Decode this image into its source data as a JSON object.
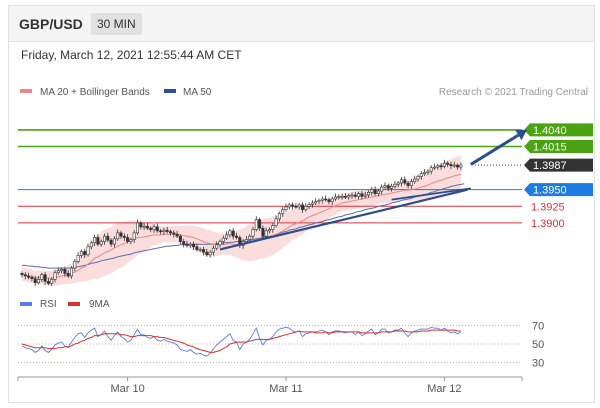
{
  "header": {
    "symbol": "GBP/USD",
    "timeframe": "30 MIN",
    "datetime": "Friday, March 12, 2021 12:55:44 AM CET"
  },
  "legend": {
    "bollinger_label": "MA 20 + Bollinger Bands",
    "ma50_label": "MA 50",
    "copyright": "Research © 2021 Trading Central",
    "rsi_label": "RSI",
    "rsi_ma_label": "9MA"
  },
  "colors": {
    "resistance": "#4aa312",
    "current": "#333333",
    "pivot": "#1e7be0",
    "support": "#e0303a",
    "trend": "#2b4e8c",
    "ma20": "#e88888",
    "ma50": "#5a6eaa",
    "band_fill": "#fbd7d7",
    "candle_up": "#ffffff",
    "candle_down": "#333333",
    "rsi": "#5b7be6",
    "rsi_ma": "#d83030"
  },
  "chart_data": [
    {
      "type": "candlestick",
      "levels": [
        {
          "value": 1.404,
          "label": "1.4040",
          "kind": "resistance"
        },
        {
          "value": 1.4015,
          "label": "1.4015",
          "kind": "resistance"
        },
        {
          "value": 1.3987,
          "label": "1.3987",
          "kind": "current"
        },
        {
          "value": 1.395,
          "label": "1.3950",
          "kind": "pivot"
        },
        {
          "value": 1.3925,
          "label": "1.3925",
          "kind": "support"
        },
        {
          "value": 1.39,
          "label": "1.3900",
          "kind": "support"
        }
      ],
      "x_ticks": [
        {
          "label": "Mar 10",
          "index": 32
        },
        {
          "label": "Mar 11",
          "index": 80
        },
        {
          "label": "Mar 12",
          "index": 128
        }
      ],
      "ylim": [
        1.3802,
        1.4085
      ],
      "close": [
        1.3822,
        1.382,
        1.3818,
        1.3816,
        1.381,
        1.3815,
        1.3822,
        1.3812,
        1.3809,
        1.3815,
        1.3825,
        1.3828,
        1.383,
        1.3824,
        1.382,
        1.3832,
        1.3842,
        1.3851,
        1.3857,
        1.3852,
        1.3864,
        1.387,
        1.3878,
        1.3868,
        1.3872,
        1.388,
        1.3874,
        1.3868,
        1.3876,
        1.3885,
        1.388,
        1.3878,
        1.3872,
        1.3875,
        1.3885,
        1.39,
        1.3894,
        1.3895,
        1.3892,
        1.389,
        1.3894,
        1.3888,
        1.3887,
        1.3889,
        1.3887,
        1.3885,
        1.3883,
        1.388,
        1.3872,
        1.3868,
        1.3866,
        1.3868,
        1.3864,
        1.386,
        1.386,
        1.3856,
        1.3852,
        1.3856,
        1.3862,
        1.3867,
        1.3872,
        1.3877,
        1.3882,
        1.3888,
        1.388,
        1.3878,
        1.3866,
        1.3872,
        1.3875,
        1.388,
        1.389,
        1.3905,
        1.3892,
        1.388,
        1.3888,
        1.389,
        1.3896,
        1.3906,
        1.3914,
        1.392,
        1.3924,
        1.3927,
        1.3925,
        1.3924,
        1.3927,
        1.392,
        1.3925,
        1.3928,
        1.393,
        1.3932,
        1.3934,
        1.3936,
        1.3935,
        1.3932,
        1.3936,
        1.3939,
        1.394,
        1.394,
        1.3939,
        1.3941,
        1.3942,
        1.394,
        1.3944,
        1.394,
        1.3942,
        1.3946,
        1.395,
        1.3944,
        1.3948,
        1.3954,
        1.3956,
        1.3952,
        1.3955,
        1.3958,
        1.396,
        1.3965,
        1.396,
        1.3956,
        1.3962,
        1.3966,
        1.397,
        1.3974,
        1.3976,
        1.3978,
        1.3983,
        1.3984,
        1.3986,
        1.3985,
        1.399,
        1.3988,
        1.3986,
        1.3987,
        1.3984,
        1.3987
      ],
      "ma20": [
        1.3823,
        1.3822,
        1.382,
        1.382,
        1.3818,
        1.3818,
        1.3818,
        1.3817,
        1.3817,
        1.3817,
        1.3818,
        1.3819,
        1.382,
        1.3821,
        1.3822,
        1.3824,
        1.3826,
        1.3829,
        1.3832,
        1.3834,
        1.3838,
        1.3842,
        1.3847,
        1.3849,
        1.3852,
        1.3855,
        1.3857,
        1.3859,
        1.3862,
        1.3865,
        1.3867,
        1.3869,
        1.3871,
        1.3873,
        1.3875,
        1.3878,
        1.3878,
        1.3879,
        1.388,
        1.3881,
        1.3882,
        1.3882,
        1.3882,
        1.3883,
        1.3883,
        1.3883,
        1.3883,
        1.3883,
        1.3882,
        1.3881,
        1.388,
        1.3879,
        1.3878,
        1.3876,
        1.3874,
        1.3872,
        1.387,
        1.3869,
        1.3868,
        1.3868,
        1.3868,
        1.3868,
        1.3868,
        1.3869,
        1.3868,
        1.3868,
        1.3868,
        1.3868,
        1.3869,
        1.387,
        1.3872,
        1.3874,
        1.3876,
        1.3876,
        1.3877,
        1.3879,
        1.3881,
        1.3883,
        1.3885,
        1.3888,
        1.3891,
        1.3894,
        1.3897,
        1.3899,
        1.3901,
        1.3903,
        1.3906,
        1.3909,
        1.3911,
        1.3913,
        1.3915,
        1.3917,
        1.3919,
        1.3921,
        1.3924,
        1.3926,
        1.3928,
        1.393,
        1.3931,
        1.3932,
        1.3933,
        1.3934,
        1.3935,
        1.3936,
        1.3937,
        1.3938,
        1.3939,
        1.394,
        1.3941,
        1.3942,
        1.3943,
        1.3944,
        1.3945,
        1.3946,
        1.3947,
        1.3948,
        1.3949,
        1.3949,
        1.395,
        1.3951,
        1.3952,
        1.3954,
        1.3955,
        1.3957,
        1.3959,
        1.3961,
        1.3963,
        1.3964,
        1.3966,
        1.3968,
        1.3969,
        1.3971,
        1.3972,
        1.3973
      ],
      "ma50": [
        1.3836,
        1.3836,
        1.3835,
        1.3835,
        1.3834,
        1.3834,
        1.3833,
        1.3833,
        1.3832,
        1.3832,
        1.3832,
        1.3832,
        1.3832,
        1.3832,
        1.3832,
        1.3832,
        1.3833,
        1.3834,
        1.3835,
        1.3836,
        1.3837,
        1.3839,
        1.384,
        1.3841,
        1.3843,
        1.3844,
        1.3845,
        1.3846,
        1.3847,
        1.3849,
        1.385,
        1.3851,
        1.3852,
        1.3853,
        1.3855,
        1.3856,
        1.3857,
        1.3858,
        1.3859,
        1.386,
        1.3861,
        1.3862,
        1.3863,
        1.3864,
        1.3865,
        1.3865,
        1.3866,
        1.3866,
        1.3867,
        1.3867,
        1.3868,
        1.3868,
        1.3868,
        1.3868,
        1.3868,
        1.3868,
        1.3868,
        1.3868,
        1.3868,
        1.3869,
        1.3869,
        1.387,
        1.387,
        1.3871,
        1.3871,
        1.3872,
        1.3872,
        1.3873,
        1.3873,
        1.3874,
        1.3875,
        1.3876,
        1.3877,
        1.3878,
        1.3879,
        1.388,
        1.3881,
        1.3883,
        1.3884,
        1.3886,
        1.3887,
        1.3889,
        1.389,
        1.3891,
        1.3893,
        1.3894,
        1.3896,
        1.3897,
        1.3898,
        1.39,
        1.3901,
        1.3902,
        1.3904,
        1.3905,
        1.3906,
        1.3908,
        1.3909,
        1.391,
        1.3912,
        1.3913,
        1.3914,
        1.3916,
        1.3917,
        1.3918,
        1.392,
        1.3921,
        1.3922,
        1.3923,
        1.3925,
        1.3926,
        1.3927,
        1.3928,
        1.393,
        1.3931,
        1.3932,
        1.3934,
        1.3935,
        1.3936,
        1.3937,
        1.3939,
        1.394,
        1.3941,
        1.3943,
        1.3944,
        1.3946,
        1.3947,
        1.3949,
        1.395,
        1.3952,
        1.3953,
        1.3955,
        1.3956,
        1.3957,
        1.3958,
        1.3959
      ],
      "band_width": [
        0.001,
        0.001,
        0.001,
        0.001,
        0.001,
        0.001,
        0.001,
        0.0011,
        0.0011,
        0.0011,
        0.0012,
        0.0012,
        0.0013,
        0.0013,
        0.0014,
        0.0015,
        0.0016,
        0.0018,
        0.002,
        0.0022,
        0.0025,
        0.0028,
        0.0031,
        0.0033,
        0.0034,
        0.0035,
        0.0035,
        0.0035,
        0.0035,
        0.0035,
        0.0034,
        0.0033,
        0.0031,
        0.003,
        0.0028,
        0.0026,
        0.0024,
        0.0022,
        0.002,
        0.0018,
        0.0016,
        0.0014,
        0.0013,
        0.0012,
        0.0012,
        0.0012,
        0.0013,
        0.0013,
        0.0014,
        0.0015,
        0.0016,
        0.0017,
        0.0018,
        0.0019,
        0.0019,
        0.002,
        0.002,
        0.002,
        0.0019,
        0.0018,
        0.0017,
        0.0016,
        0.0016,
        0.0017,
        0.0018,
        0.002,
        0.0022,
        0.0024,
        0.0026,
        0.0028,
        0.0029,
        0.003,
        0.003,
        0.003,
        0.003,
        0.0029,
        0.0029,
        0.0028,
        0.0027,
        0.0026,
        0.0025,
        0.0024,
        0.0023,
        0.0022,
        0.0021,
        0.002,
        0.0019,
        0.0018,
        0.0017,
        0.0016,
        0.0015,
        0.0015,
        0.0014,
        0.0014,
        0.0014,
        0.0014,
        0.0013,
        0.0013,
        0.0013,
        0.0013,
        0.0013,
        0.0013,
        0.0013,
        0.0013,
        0.0013,
        0.0013,
        0.0013,
        0.0013,
        0.0013,
        0.0013,
        0.0013,
        0.0014,
        0.0014,
        0.0014,
        0.0015,
        0.0015,
        0.0016,
        0.0016,
        0.0017,
        0.0017,
        0.0018,
        0.0019,
        0.002,
        0.0021,
        0.0022,
        0.0023,
        0.0024,
        0.0025,
        0.0026,
        0.0026,
        0.0027,
        0.0027,
        0.0028,
        0.0028,
        0.0028
      ],
      "trendlines": [
        {
          "from": {
            "index": 60,
            "value": 1.386
          },
          "to": {
            "index": 135,
            "value": 1.395
          },
          "arrow": false
        },
        {
          "from": {
            "index": 112,
            "value": 1.3935
          },
          "to": {
            "index": 136,
            "value": 1.3952
          },
          "arrow": false
        },
        {
          "from": {
            "index": 136,
            "value": 1.3988
          },
          "to": {
            "index": 153,
            "value": 1.404
          },
          "arrow": true
        }
      ]
    },
    {
      "type": "line",
      "title": "RSI",
      "yticks": [
        70,
        50,
        30
      ],
      "ylim": [
        22,
        78
      ],
      "rsi": [
        48,
        46,
        45,
        44,
        41,
        43,
        48,
        43,
        41,
        44,
        49,
        51,
        52,
        48,
        46,
        52,
        57,
        61,
        62,
        57,
        62,
        65,
        67,
        58,
        60,
        64,
        58,
        54,
        59,
        63,
        58,
        56,
        52,
        54,
        60,
        66,
        60,
        60,
        57,
        56,
        58,
        54,
        53,
        55,
        53,
        52,
        51,
        49,
        44,
        43,
        42,
        44,
        41,
        39,
        40,
        38,
        37,
        40,
        45,
        49,
        52,
        55,
        58,
        61,
        54,
        52,
        44,
        50,
        52,
        55,
        61,
        67,
        56,
        49,
        54,
        55,
        58,
        63,
        66,
        67,
        68,
        67,
        64,
        63,
        64,
        58,
        61,
        62,
        63,
        63,
        64,
        65,
        63,
        60,
        63,
        64,
        64,
        63,
        62,
        63,
        63,
        60,
        63,
        59,
        61,
        64,
        66,
        60,
        62,
        66,
        66,
        62,
        63,
        65,
        65,
        67,
        62,
        58,
        62,
        64,
        65,
        66,
        66,
        66,
        68,
        67,
        67,
        65,
        67,
        64,
        62,
        63,
        61,
        63
      ],
      "rsi_ma": [
        50,
        49,
        48,
        47,
        46,
        46,
        46,
        46,
        45,
        45,
        45,
        46,
        46,
        47,
        47,
        48,
        50,
        51,
        53,
        54,
        56,
        57,
        59,
        59,
        60,
        61,
        61,
        61,
        61,
        61,
        60,
        60,
        59,
        58,
        58,
        59,
        59,
        59,
        59,
        59,
        58,
        58,
        57,
        57,
        56,
        55,
        54,
        53,
        52,
        51,
        49,
        48,
        47,
        45,
        44,
        43,
        42,
        41,
        41,
        42,
        43,
        45,
        47,
        50,
        51,
        52,
        52,
        52,
        52,
        53,
        54,
        55,
        55,
        55,
        55,
        55,
        56,
        57,
        58,
        59,
        60,
        61,
        62,
        63,
        64,
        63,
        63,
        63,
        63,
        62,
        62,
        62,
        63,
        62,
        62,
        63,
        63,
        63,
        63,
        63,
        63,
        63,
        63,
        62,
        62,
        62,
        62,
        62,
        62,
        63,
        63,
        63,
        63,
        64,
        64,
        64,
        64,
        63,
        63,
        63,
        63,
        64,
        64,
        64,
        65,
        65,
        65,
        65,
        65,
        65,
        65,
        65,
        64,
        64
      ]
    }
  ]
}
